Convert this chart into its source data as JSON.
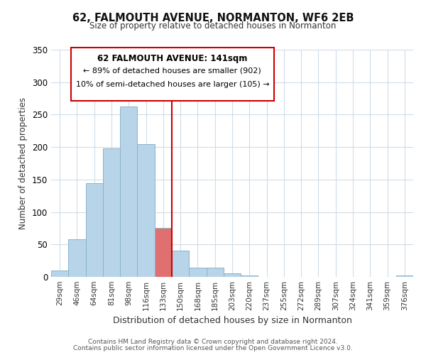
{
  "title": "62, FALMOUTH AVENUE, NORMANTON, WF6 2EB",
  "subtitle": "Size of property relative to detached houses in Normanton",
  "xlabel": "Distribution of detached houses by size in Normanton",
  "ylabel": "Number of detached properties",
  "footer_lines": [
    "Contains HM Land Registry data © Crown copyright and database right 2024.",
    "Contains public sector information licensed under the Open Government Licence v3.0."
  ],
  "bin_labels": [
    "29sqm",
    "46sqm",
    "64sqm",
    "81sqm",
    "98sqm",
    "116sqm",
    "133sqm",
    "150sqm",
    "168sqm",
    "185sqm",
    "203sqm",
    "220sqm",
    "237sqm",
    "255sqm",
    "272sqm",
    "289sqm",
    "307sqm",
    "324sqm",
    "341sqm",
    "359sqm",
    "376sqm"
  ],
  "bar_values": [
    10,
    58,
    144,
    198,
    263,
    204,
    75,
    41,
    14,
    14,
    6,
    2,
    0,
    0,
    0,
    0,
    0,
    0,
    0,
    0,
    2
  ],
  "bar_color": "#b8d4e8",
  "bar_edge_color": "#8ab4cc",
  "highlight_index": 6,
  "highlight_bar_color": "#e07070",
  "highlight_line_color": "#cc0000",
  "vline_position": 6.5,
  "ylim": [
    0,
    350
  ],
  "annotation_box": {
    "title": "62 FALMOUTH AVENUE: 141sqm",
    "line2": "← 89% of detached houses are smaller (902)",
    "line3": "10% of semi-detached houses are larger (105) →",
    "box_color": "#ffffff",
    "border_color": "#cc0000",
    "text_color": "#000000"
  },
  "grid_color": "#d0dce8",
  "background_color": "#ffffff"
}
